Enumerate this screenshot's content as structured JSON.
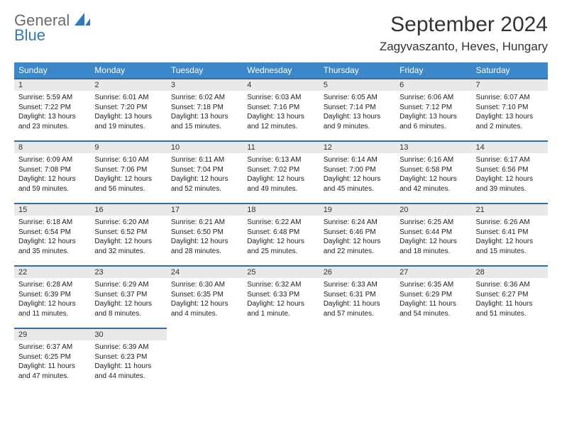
{
  "logo": {
    "general": "General",
    "blue": "Blue"
  },
  "title": "September 2024",
  "location": "Zagyvaszanto, Heves, Hungary",
  "colors": {
    "header_bg": "#3b87c8",
    "header_text": "#ffffff",
    "daynum_bg": "#e9e9e9",
    "cell_border_top": "#2f6fa8",
    "logo_gray": "#6b6b6b",
    "logo_blue": "#2f78bd",
    "body_text": "#222222"
  },
  "typography": {
    "title_fontsize": 30,
    "location_fontsize": 17,
    "dayhead_fontsize": 12,
    "daynum_fontsize": 11,
    "body_fontsize": 10
  },
  "day_names": [
    "Sunday",
    "Monday",
    "Tuesday",
    "Wednesday",
    "Thursday",
    "Friday",
    "Saturday"
  ],
  "weeks": [
    [
      {
        "n": "1",
        "sr": "Sunrise: 5:59 AM",
        "ss": "Sunset: 7:22 PM",
        "dl": "Daylight: 13 hours and 23 minutes."
      },
      {
        "n": "2",
        "sr": "Sunrise: 6:01 AM",
        "ss": "Sunset: 7:20 PM",
        "dl": "Daylight: 13 hours and 19 minutes."
      },
      {
        "n": "3",
        "sr": "Sunrise: 6:02 AM",
        "ss": "Sunset: 7:18 PM",
        "dl": "Daylight: 13 hours and 15 minutes."
      },
      {
        "n": "4",
        "sr": "Sunrise: 6:03 AM",
        "ss": "Sunset: 7:16 PM",
        "dl": "Daylight: 13 hours and 12 minutes."
      },
      {
        "n": "5",
        "sr": "Sunrise: 6:05 AM",
        "ss": "Sunset: 7:14 PM",
        "dl": "Daylight: 13 hours and 9 minutes."
      },
      {
        "n": "6",
        "sr": "Sunrise: 6:06 AM",
        "ss": "Sunset: 7:12 PM",
        "dl": "Daylight: 13 hours and 6 minutes."
      },
      {
        "n": "7",
        "sr": "Sunrise: 6:07 AM",
        "ss": "Sunset: 7:10 PM",
        "dl": "Daylight: 13 hours and 2 minutes."
      }
    ],
    [
      {
        "n": "8",
        "sr": "Sunrise: 6:09 AM",
        "ss": "Sunset: 7:08 PM",
        "dl": "Daylight: 12 hours and 59 minutes."
      },
      {
        "n": "9",
        "sr": "Sunrise: 6:10 AM",
        "ss": "Sunset: 7:06 PM",
        "dl": "Daylight: 12 hours and 56 minutes."
      },
      {
        "n": "10",
        "sr": "Sunrise: 6:11 AM",
        "ss": "Sunset: 7:04 PM",
        "dl": "Daylight: 12 hours and 52 minutes."
      },
      {
        "n": "11",
        "sr": "Sunrise: 6:13 AM",
        "ss": "Sunset: 7:02 PM",
        "dl": "Daylight: 12 hours and 49 minutes."
      },
      {
        "n": "12",
        "sr": "Sunrise: 6:14 AM",
        "ss": "Sunset: 7:00 PM",
        "dl": "Daylight: 12 hours and 45 minutes."
      },
      {
        "n": "13",
        "sr": "Sunrise: 6:16 AM",
        "ss": "Sunset: 6:58 PM",
        "dl": "Daylight: 12 hours and 42 minutes."
      },
      {
        "n": "14",
        "sr": "Sunrise: 6:17 AM",
        "ss": "Sunset: 6:56 PM",
        "dl": "Daylight: 12 hours and 39 minutes."
      }
    ],
    [
      {
        "n": "15",
        "sr": "Sunrise: 6:18 AM",
        "ss": "Sunset: 6:54 PM",
        "dl": "Daylight: 12 hours and 35 minutes."
      },
      {
        "n": "16",
        "sr": "Sunrise: 6:20 AM",
        "ss": "Sunset: 6:52 PM",
        "dl": "Daylight: 12 hours and 32 minutes."
      },
      {
        "n": "17",
        "sr": "Sunrise: 6:21 AM",
        "ss": "Sunset: 6:50 PM",
        "dl": "Daylight: 12 hours and 28 minutes."
      },
      {
        "n": "18",
        "sr": "Sunrise: 6:22 AM",
        "ss": "Sunset: 6:48 PM",
        "dl": "Daylight: 12 hours and 25 minutes."
      },
      {
        "n": "19",
        "sr": "Sunrise: 6:24 AM",
        "ss": "Sunset: 6:46 PM",
        "dl": "Daylight: 12 hours and 22 minutes."
      },
      {
        "n": "20",
        "sr": "Sunrise: 6:25 AM",
        "ss": "Sunset: 6:44 PM",
        "dl": "Daylight: 12 hours and 18 minutes."
      },
      {
        "n": "21",
        "sr": "Sunrise: 6:26 AM",
        "ss": "Sunset: 6:41 PM",
        "dl": "Daylight: 12 hours and 15 minutes."
      }
    ],
    [
      {
        "n": "22",
        "sr": "Sunrise: 6:28 AM",
        "ss": "Sunset: 6:39 PM",
        "dl": "Daylight: 12 hours and 11 minutes."
      },
      {
        "n": "23",
        "sr": "Sunrise: 6:29 AM",
        "ss": "Sunset: 6:37 PM",
        "dl": "Daylight: 12 hours and 8 minutes."
      },
      {
        "n": "24",
        "sr": "Sunrise: 6:30 AM",
        "ss": "Sunset: 6:35 PM",
        "dl": "Daylight: 12 hours and 4 minutes."
      },
      {
        "n": "25",
        "sr": "Sunrise: 6:32 AM",
        "ss": "Sunset: 6:33 PM",
        "dl": "Daylight: 12 hours and 1 minute."
      },
      {
        "n": "26",
        "sr": "Sunrise: 6:33 AM",
        "ss": "Sunset: 6:31 PM",
        "dl": "Daylight: 11 hours and 57 minutes."
      },
      {
        "n": "27",
        "sr": "Sunrise: 6:35 AM",
        "ss": "Sunset: 6:29 PM",
        "dl": "Daylight: 11 hours and 54 minutes."
      },
      {
        "n": "28",
        "sr": "Sunrise: 6:36 AM",
        "ss": "Sunset: 6:27 PM",
        "dl": "Daylight: 11 hours and 51 minutes."
      }
    ],
    [
      {
        "n": "29",
        "sr": "Sunrise: 6:37 AM",
        "ss": "Sunset: 6:25 PM",
        "dl": "Daylight: 11 hours and 47 minutes."
      },
      {
        "n": "30",
        "sr": "Sunrise: 6:39 AM",
        "ss": "Sunset: 6:23 PM",
        "dl": "Daylight: 11 hours and 44 minutes."
      },
      null,
      null,
      null,
      null,
      null
    ]
  ]
}
